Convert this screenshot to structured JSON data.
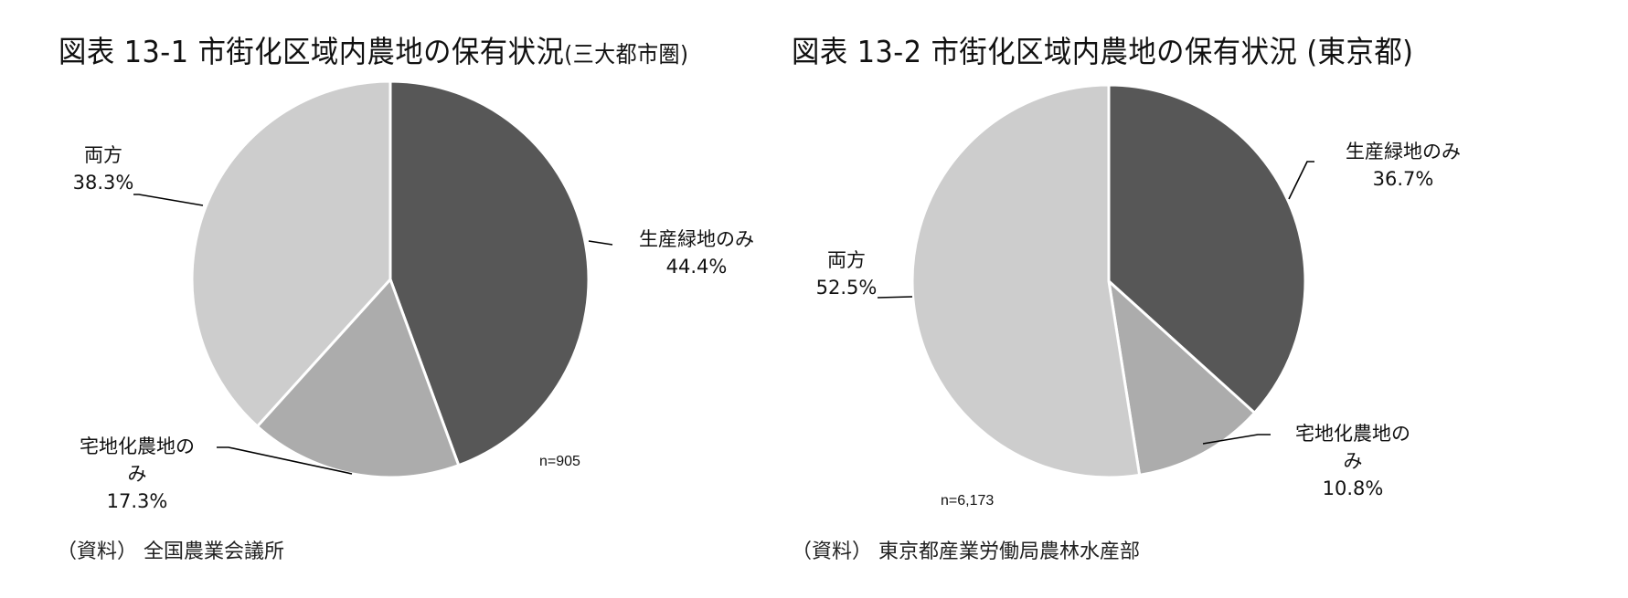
{
  "chart_data": [
    {
      "type": "pie",
      "title": "図表 13-1 市街化区域内農地の保有状況(三大都市圏)",
      "title_main": "図表 13-1 市街化区域内農地の保有状況",
      "title_suffix": "(三大都市圏)",
      "categories": [
        "生産緑地のみ",
        "宅地化農地のみ",
        "両方"
      ],
      "values": [
        44.4,
        17.3,
        38.3
      ],
      "value_labels": [
        "44.4%",
        "17.3%",
        "38.3%"
      ],
      "colors": [
        "#575757",
        "#acacac",
        "#cdcdcd"
      ],
      "start_angle": "12 o'clock, clockwise",
      "sample_size": "n=905",
      "source": "（資料） 全国農業会議所"
    },
    {
      "type": "pie",
      "title": "図表 13-2 市街化区域内農地の保有状況 (東京都)",
      "title_main": "図表 13-2 市街化区域内農地の保有状況",
      "title_suffix": " (東京都)",
      "categories": [
        "生産緑地のみ",
        "宅地化農地のみ",
        "両方"
      ],
      "values": [
        36.7,
        10.8,
        52.5
      ],
      "value_labels": [
        "36.7%",
        "10.8%",
        "52.5%"
      ],
      "colors": [
        "#575757",
        "#acacac",
        "#cdcdcd"
      ],
      "start_angle": "12 o'clock, clockwise",
      "sample_size": "n=6,173",
      "source": "（資料） 東京都産業労働局農林水産部"
    }
  ],
  "labels": {
    "chart1": {
      "green_name": "生産緑地のみ",
      "green_pct": "44.4%",
      "res_name_1": "宅地化農地の",
      "res_name_2": "み",
      "res_pct": "17.3%",
      "both_name": "両方",
      "both_pct": "38.3%"
    },
    "chart2": {
      "green_name": "生産緑地のみ",
      "green_pct": "36.7%",
      "res_name_1": "宅地化農地の",
      "res_name_2": "み",
      "res_pct": "10.8%",
      "both_name": "両方",
      "both_pct": "52.5%"
    }
  }
}
